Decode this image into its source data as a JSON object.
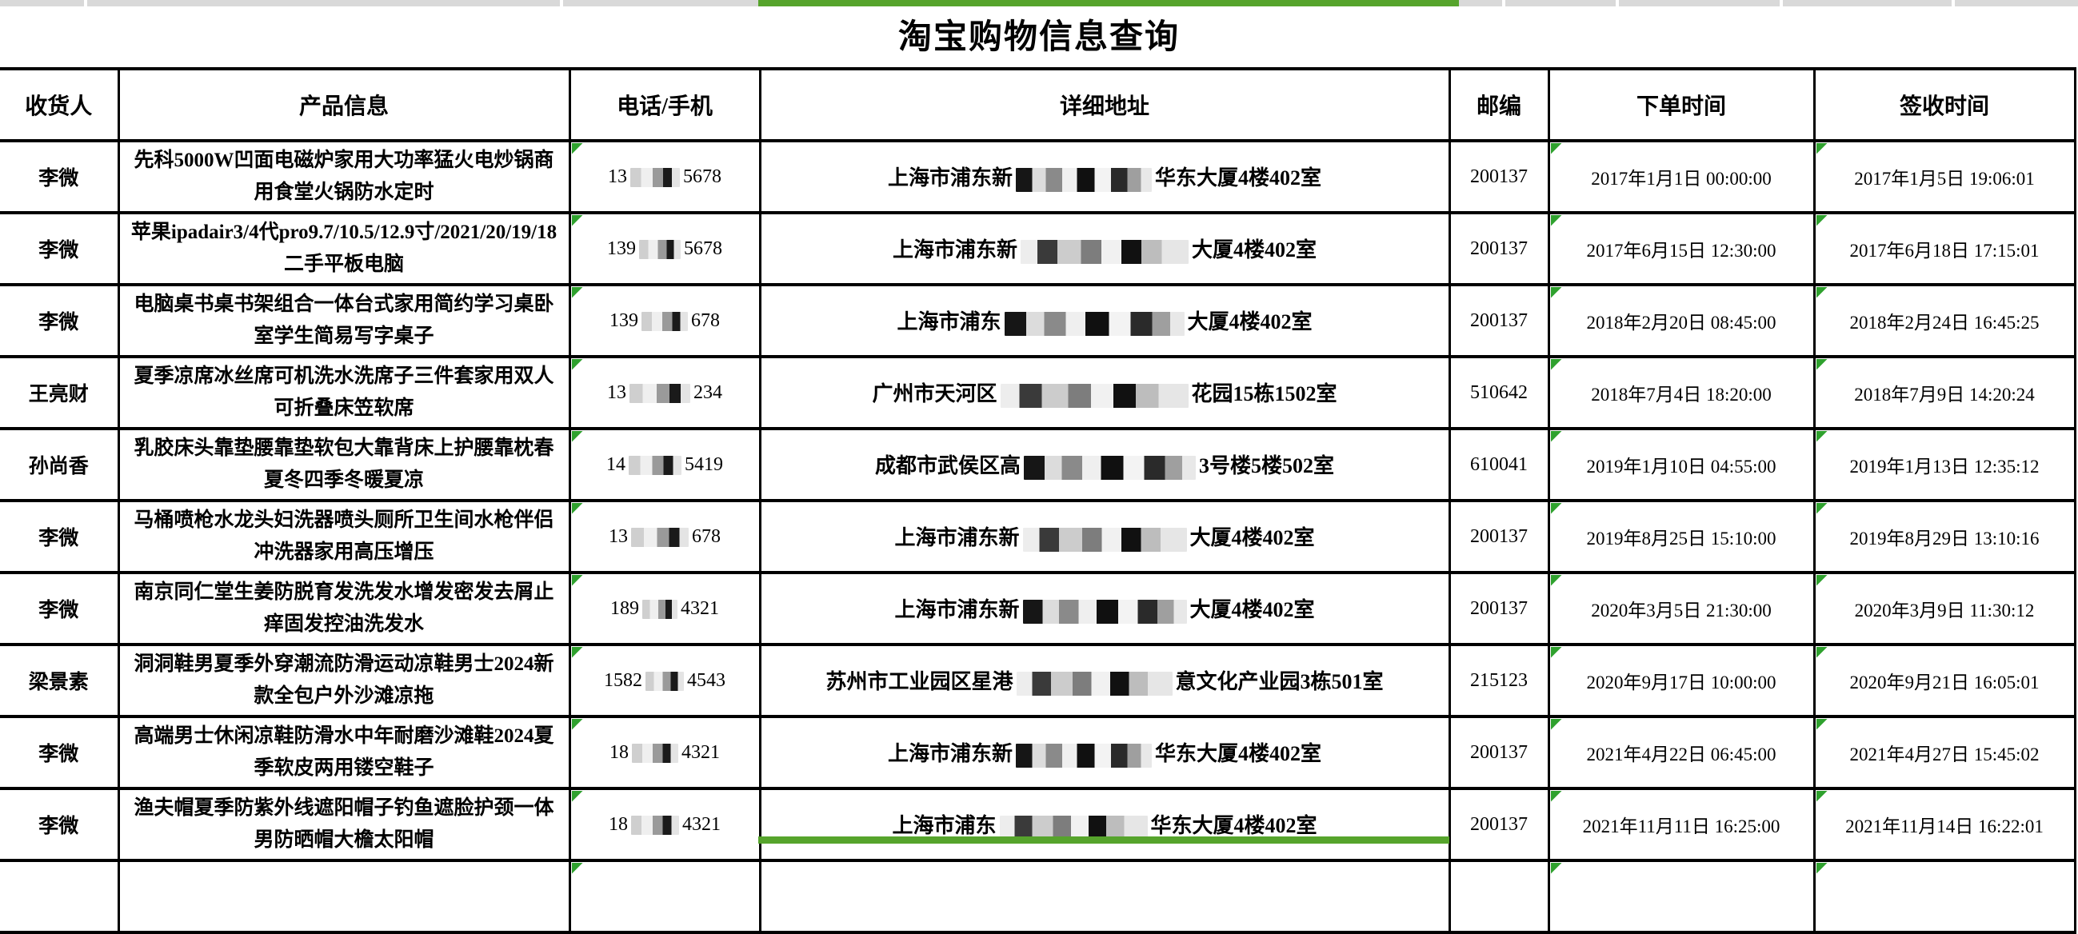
{
  "app": {
    "title": "淘宝购物信息查询"
  },
  "colors": {
    "selection_green": "#56a42c",
    "triangle_green": "#2fa12e",
    "strip_gray": "#d9d9d9",
    "border_black": "#000000"
  },
  "table": {
    "headers": [
      "收货人",
      "产品信息",
      "电话/手机",
      "详细地址",
      "邮编",
      "下单时间",
      "签收时间"
    ],
    "rows": [
      {
        "recipient": "李微",
        "product": "先科5000W凹面电磁炉家用大功率猛火电炒锅商用食堂火锅防水定时",
        "phone_prefix": "13",
        "phone_suffix": "5678",
        "phone_blur": 62,
        "addr_prefix": "上海市浦东新",
        "addr_suffix": "华东大厦4楼402室",
        "addr_blur": 170,
        "zip": "200137",
        "ordered": "2017年1月1日 00:00:00",
        "received": "2017年1月5日 19:06:01"
      },
      {
        "recipient": "李微",
        "product": "苹果ipadair3/4代pro9.7/10.5/12.9寸/2021/20/19/18二手平板电脑",
        "phone_prefix": "139",
        "phone_suffix": "5678",
        "phone_blur": 52,
        "addr_prefix": "上海市浦东新",
        "addr_suffix": "大厦4楼402室",
        "addr_blur": 210,
        "zip": "200137",
        "ordered": "2017年6月15日 12:30:00",
        "received": "2017年6月18日 17:15:01"
      },
      {
        "recipient": "李微",
        "product": "电脑桌书桌书架组合一体台式家用简约学习桌卧室学生简易写字桌子",
        "phone_prefix": "139",
        "phone_suffix": "678",
        "phone_blur": 58,
        "addr_prefix": "上海市浦东",
        "addr_suffix": "大厦4楼402室",
        "addr_blur": 225,
        "zip": "200137",
        "ordered": "2018年2月20日 08:45:00",
        "received": "2018年2月24日 16:45:25"
      },
      {
        "recipient": "王亮财",
        "product": "夏季凉席冰丝席可机洗水洗席子三件套家用双人可折叠床笠软席",
        "phone_prefix": "13",
        "phone_suffix": "234",
        "phone_blur": 76,
        "addr_prefix": "广州市天河区",
        "addr_suffix": "花园15栋1502室",
        "addr_blur": 235,
        "zip": "510642",
        "ordered": "2018年7月4日 18:20:00",
        "received": "2018年7月9日 14:20:24"
      },
      {
        "recipient": "孙尚香",
        "product": "乳胶床头靠垫腰靠垫软包大靠背床上护腰靠枕春夏冬四季冬暖夏凉",
        "phone_prefix": "14",
        "phone_suffix": "5419",
        "phone_blur": 66,
        "addr_prefix": "成都市武侯区高",
        "addr_suffix": "3号楼5楼502室",
        "addr_blur": 215,
        "zip": "610041",
        "ordered": "2019年1月10日 04:55:00",
        "received": "2019年1月13日 12:35:12"
      },
      {
        "recipient": "李微",
        "product": "马桶喷枪水龙头妇洗器喷头厕所卫生间水枪伴侣冲洗器家用高压增压",
        "phone_prefix": "13",
        "phone_suffix": "678",
        "phone_blur": 72,
        "addr_prefix": "上海市浦东新",
        "addr_suffix": "大厦4楼402室",
        "addr_blur": 205,
        "zip": "200137",
        "ordered": "2019年8月25日 15:10:00",
        "received": "2019年8月29日 13:10:16"
      },
      {
        "recipient": "李微",
        "product": "南京同仁堂生姜防脱育发洗发水增发密发去屑止痒固发控油洗发水",
        "phone_prefix": "189",
        "phone_suffix": "4321",
        "phone_blur": 44,
        "addr_prefix": "上海市浦东新",
        "addr_suffix": "大厦4楼402室",
        "addr_blur": 205,
        "zip": "200137",
        "ordered": "2020年3月5日 21:30:00",
        "received": "2020年3月9日 11:30:12"
      },
      {
        "recipient": "梁景素",
        "product": "洞洞鞋男夏季外穿潮流防滑运动凉鞋男士2024新款全包户外沙滩凉拖",
        "phone_prefix": "1582",
        "phone_suffix": "4543",
        "phone_blur": 48,
        "addr_prefix": "苏州市工业园区星港",
        "addr_suffix": "意文化产业园3栋501室",
        "addr_blur": 195,
        "zip": "215123",
        "ordered": "2020年9月17日 10:00:00",
        "received": "2020年9月21日 16:05:01"
      },
      {
        "recipient": "李微",
        "product": "高端男士休闲凉鞋防滑水中年耐磨沙滩鞋2024夏季软皮两用镂空鞋子",
        "phone_prefix": "18",
        "phone_suffix": "4321",
        "phone_blur": 58,
        "addr_prefix": "上海市浦东新",
        "addr_suffix": "华东大厦4楼402室",
        "addr_blur": 170,
        "zip": "200137",
        "ordered": "2021年4月22日 06:45:00",
        "received": "2021年4月27日 15:45:02"
      },
      {
        "recipient": "李微",
        "product": "渔夫帽夏季防紫外线遮阳帽子钓鱼遮脸护颈一体男防晒帽大檐太阳帽",
        "phone_prefix": "18",
        "phone_suffix": "4321",
        "phone_blur": 60,
        "addr_prefix": "上海市浦东",
        "addr_suffix": "华东大厦4楼402室",
        "addr_blur": 185,
        "zip": "200137",
        "ordered": "2021年11月11日 16:25:00",
        "received": "2021年11月14日 16:22:01"
      }
    ]
  }
}
